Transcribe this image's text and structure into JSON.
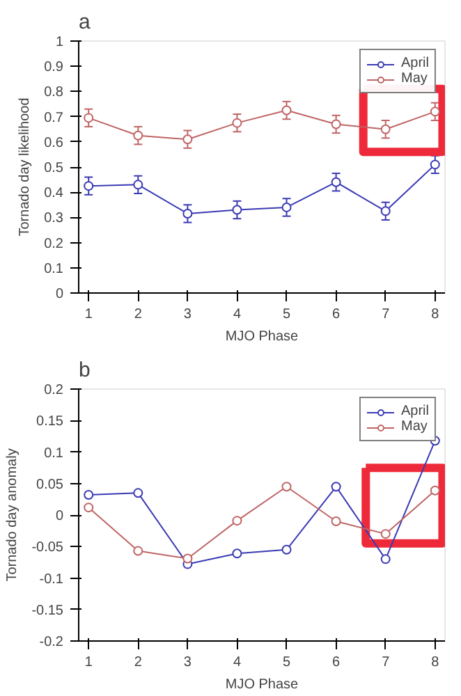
{
  "chart_data": [
    {
      "type": "line",
      "title": "a",
      "xlabel": "MJO Phase",
      "ylabel": "Tornado day likelihood",
      "x": [
        1,
        2,
        3,
        4,
        5,
        6,
        7,
        8
      ],
      "xlim": [
        0.8,
        8.2
      ],
      "xticks": [
        1,
        2,
        3,
        4,
        5,
        6,
        7,
        8
      ],
      "ylim": [
        0,
        1
      ],
      "yticks": [
        0,
        0.1,
        0.2,
        0.3,
        0.4,
        0.5,
        0.6,
        0.7,
        0.8,
        0.9,
        1
      ],
      "marker": "circle",
      "legend": "top right",
      "grid": false,
      "series": [
        {
          "name": "April",
          "color": "#3a3ab4",
          "values": [
            0.425,
            0.43,
            0.315,
            0.33,
            0.34,
            0.44,
            0.325,
            0.51
          ],
          "errors": [
            0.035,
            0.035,
            0.035,
            0.035,
            0.035,
            0.035,
            0.035,
            0.035
          ]
        },
        {
          "name": "May",
          "color": "#c06464",
          "values": [
            0.695,
            0.625,
            0.61,
            0.675,
            0.725,
            0.67,
            0.65,
            0.72
          ],
          "errors": [
            0.035,
            0.035,
            0.035,
            0.035,
            0.035,
            0.035,
            0.035,
            0.035
          ]
        }
      ]
    },
    {
      "type": "line",
      "title": "b",
      "xlabel": "MJO Phase",
      "ylabel": "Tornado day anomaly",
      "x": [
        1,
        2,
        3,
        4,
        5,
        6,
        7,
        8
      ],
      "xlim": [
        0.8,
        8.2
      ],
      "xticks": [
        1,
        2,
        3,
        4,
        5,
        6,
        7,
        8
      ],
      "ylim": [
        -0.2,
        0.2
      ],
      "yticks": [
        -0.2,
        -0.15,
        -0.1,
        -0.05,
        0,
        0.05,
        0.1,
        0.15,
        0.2
      ],
      "marker": "circle",
      "legend": "top right",
      "grid": false,
      "series": [
        {
          "name": "April",
          "color": "#3a3ab4",
          "values": [
            0.032,
            0.035,
            -0.078,
            -0.061,
            -0.055,
            0.045,
            -0.07,
            0.118
          ]
        },
        {
          "name": "May",
          "color": "#c06464",
          "values": [
            0.012,
            -0.057,
            -0.069,
            -0.009,
            0.045,
            -0.01,
            -0.03,
            0.039
          ]
        }
      ]
    }
  ]
}
